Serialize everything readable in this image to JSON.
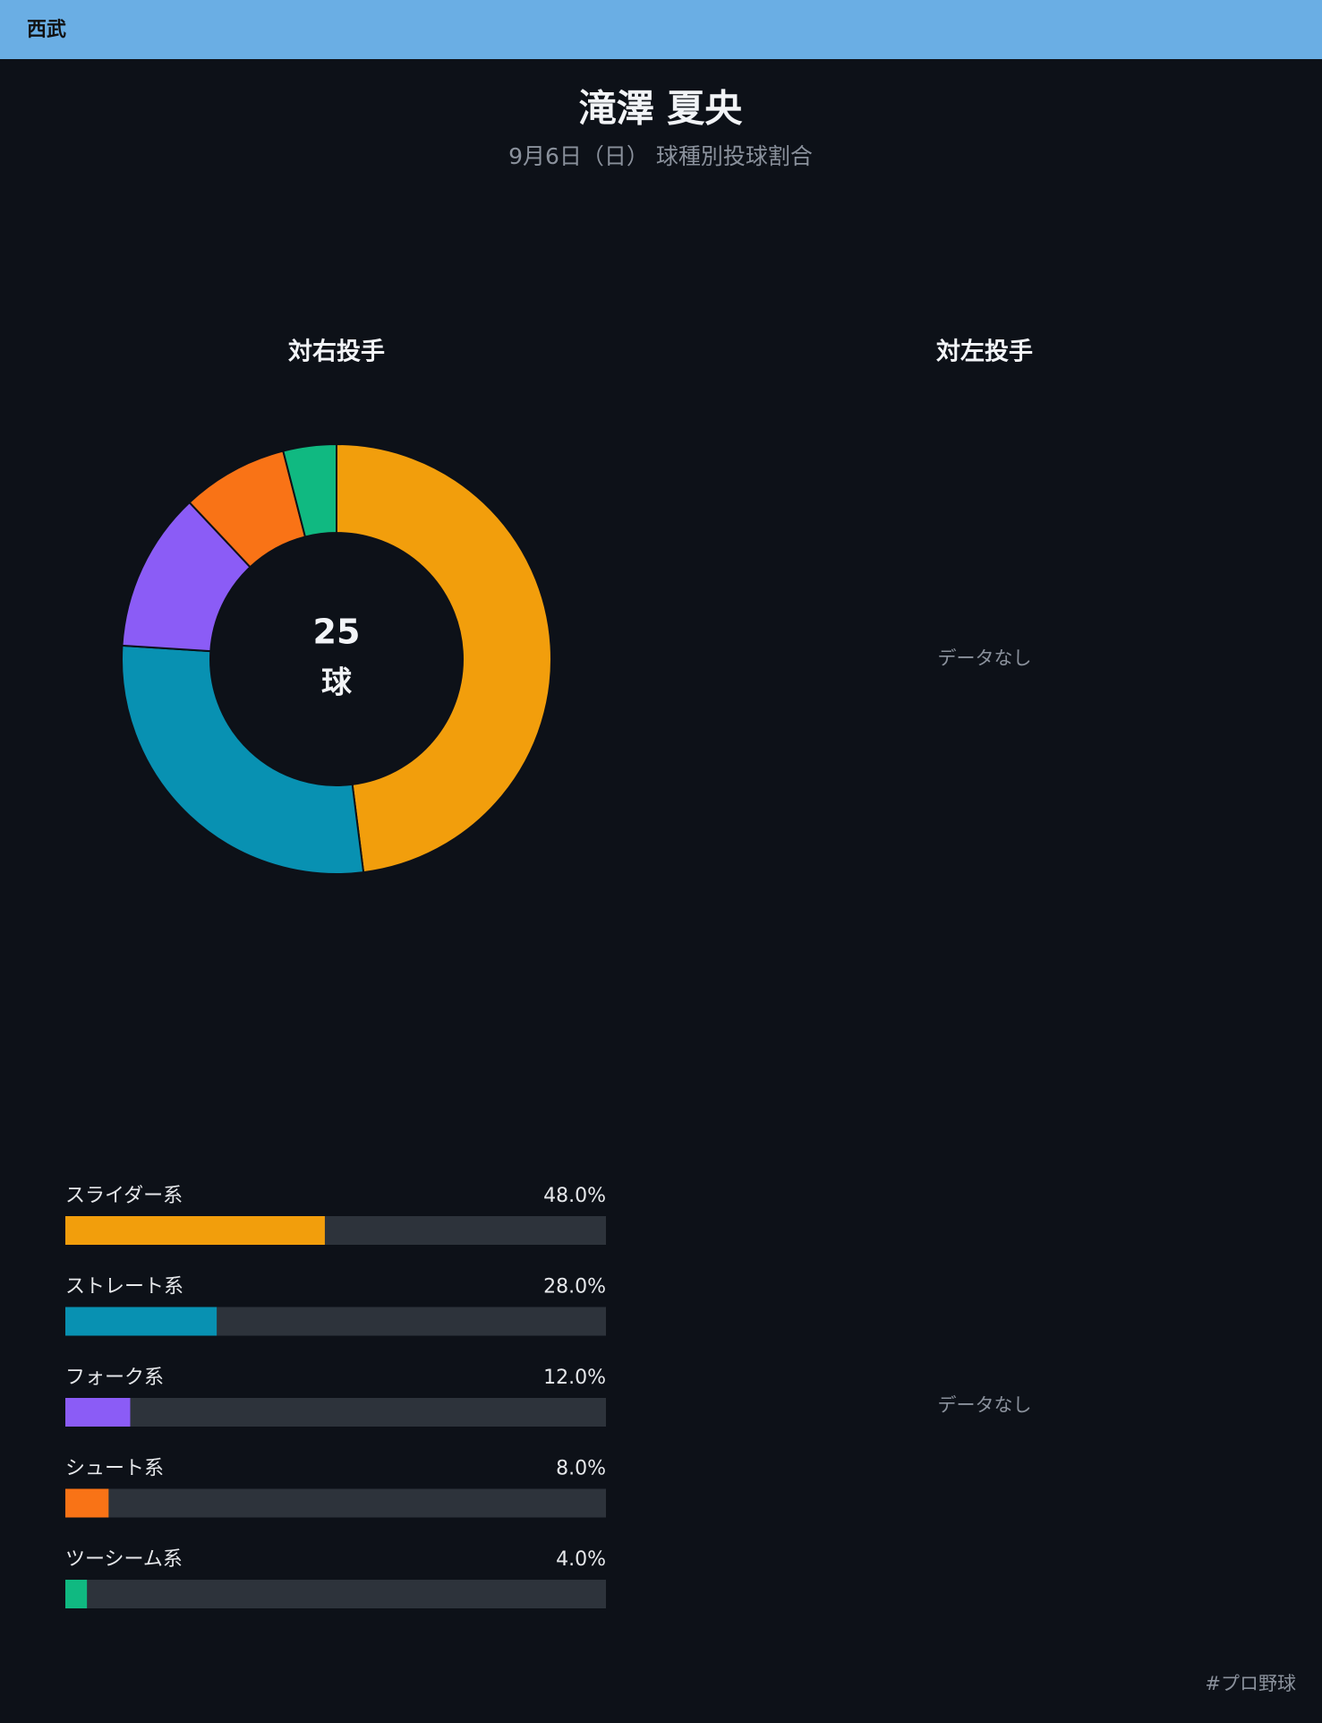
{
  "header": {
    "team": "西武"
  },
  "title": "滝澤 夏央",
  "subtitle": "9月6日（日） 球種別投球割合",
  "chart_data": {
    "type": "donut",
    "title": "対右投手",
    "categories": [
      "スライダー系",
      "ストレート系",
      "フォーク系",
      "シュート系",
      "ツーシーム系"
    ],
    "values": [
      48,
      28,
      12,
      8,
      4
    ],
    "value_labels": [
      "48.0%",
      "28.0%",
      "12.0%",
      "8.0%",
      "4.0%"
    ],
    "colors": [
      "#f29e0c",
      "#0891b2",
      "#8b5cf6",
      "#f97316",
      "#10b981"
    ],
    "center_value": 25,
    "center_label": "球"
  },
  "left_panel": {
    "title": "対左投手",
    "empty_chart": "データなし",
    "empty_bars": "データなし"
  },
  "footer": {
    "hashtag": "#プロ野球"
  }
}
